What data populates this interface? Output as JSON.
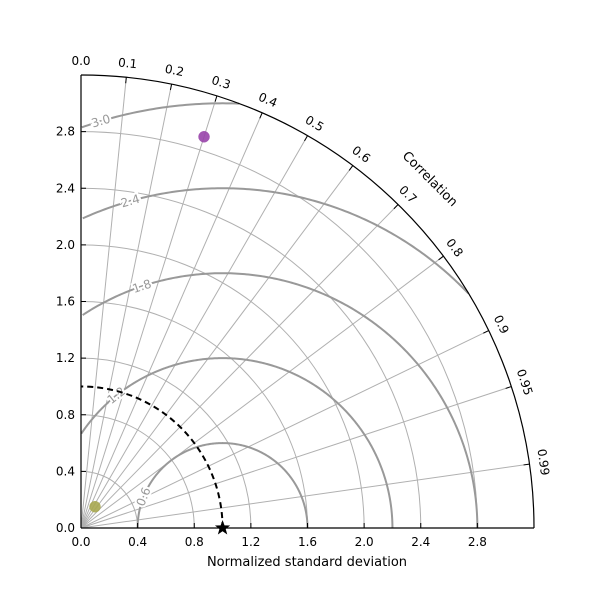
{
  "chart_data": {
    "type": "scatter",
    "subtype": "taylor-diagram",
    "title": "",
    "xlabel": "Normalized standard deviation",
    "angular_label": "Correlation",
    "std_range": [
      0.0,
      3.2
    ],
    "std_ticks": [
      "0.0",
      "0.4",
      "0.8",
      "1.2",
      "1.6",
      "2.0",
      "2.4",
      "2.8"
    ],
    "correlation_ticks": [
      "0.0",
      "0.1",
      "0.2",
      "0.3",
      "0.4",
      "0.5",
      "0.6",
      "0.7",
      "0.8",
      "0.9",
      "0.95",
      "0.99"
    ],
    "rms_contours": [
      0.6,
      1.2,
      1.8,
      2.4,
      3.0
    ],
    "rms_labels": [
      "0.6",
      "1.2",
      "1.8",
      "2.4",
      "3.0"
    ],
    "reference": {
      "std": 1.0,
      "correlation": 1.0,
      "marker": "star",
      "color": "#000000"
    },
    "points": [
      {
        "std": 2.897,
        "correlation": 0.3,
        "color": "#9944aa",
        "marker": "circle"
      },
      {
        "std": 0.18,
        "correlation": 0.55,
        "color": "#a8a850",
        "marker": "circle"
      }
    ],
    "grid": true,
    "colors": {
      "grid": "#b0b0b0",
      "rms": "#999999",
      "reference_arc": "#000000"
    }
  }
}
